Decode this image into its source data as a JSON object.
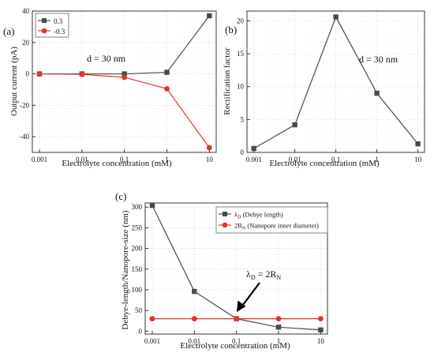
{
  "chart_data": [
    {
      "panel_label": "(a)",
      "type": "line",
      "x": [
        0.001,
        0.01,
        0.1,
        1,
        10
      ],
      "x_tick_labels": [
        "0.001",
        "0.01",
        "0.1",
        "1",
        "10"
      ],
      "x_scale": "log",
      "xlim": [
        0.00068,
        14.5
      ],
      "xlabel": "Electrolyte concentration (mM)",
      "ylabel": "Output current (pA)",
      "ylim": [
        -50,
        40
      ],
      "y_ticks": [
        -40,
        -20,
        0,
        20,
        40
      ],
      "y_tick_labels": [
        "-40",
        "-20",
        "0",
        "20",
        "40"
      ],
      "grid": true,
      "legend_position": "top-left",
      "annotation": "d = 30 nm",
      "series": [
        {
          "name": "0.3",
          "color": "#4a4a4a",
          "marker": "square",
          "values": [
            0,
            0,
            0,
            1,
            37
          ]
        },
        {
          "name": "-0.3",
          "color": "#e0342e",
          "marker": "circle",
          "values": [
            0,
            -0.3,
            -2.2,
            -9.5,
            -47
          ]
        }
      ]
    },
    {
      "panel_label": "(b)",
      "type": "line",
      "x": [
        0.001,
        0.01,
        0.1,
        1,
        10
      ],
      "x_tick_labels": [
        "0.001",
        "0.01",
        "0.1",
        "1",
        "10"
      ],
      "x_scale": "log",
      "xlim": [
        0.00068,
        14.5
      ],
      "xlabel": "Electrolyte concentration (mM)",
      "ylabel": "Rectification factor",
      "ylim": [
        0,
        21.5
      ],
      "y_ticks": [
        0,
        5,
        10,
        15,
        20
      ],
      "y_tick_labels": [
        "0",
        "5",
        "10",
        "15",
        "20"
      ],
      "grid": true,
      "annotation": "d = 30 nm",
      "series": [
        {
          "color": "#4a4a4a",
          "marker": "square",
          "values": [
            0.6,
            4.2,
            20.6,
            9.0,
            1.3
          ]
        }
      ]
    },
    {
      "panel_label": "(c)",
      "type": "line",
      "x": [
        0.001,
        0.01,
        0.1,
        1,
        10
      ],
      "x_tick_labels": [
        "0.001",
        "0.01",
        "0.1",
        "1",
        "10"
      ],
      "x_scale": "log",
      "xlim": [
        0.00068,
        14.5
      ],
      "xlabel": "Electrolyte concentration (mM)",
      "ylabel": "Debye-length/Nanopore-size (nm)",
      "ylim": [
        -7,
        310
      ],
      "y_ticks": [
        0,
        50,
        100,
        150,
        200,
        250,
        300
      ],
      "y_tick_labels": [
        "0",
        "50",
        "100",
        "150",
        "200",
        "250",
        "300"
      ],
      "grid": true,
      "legend_position": "top-right",
      "series": [
        {
          "name_main": "λ",
          "name_sub": "D",
          "name_rest": " (Debye length)",
          "color": "#4a4a4a",
          "marker": "square",
          "values": [
            304,
            96,
            30,
            9.6,
            3
          ]
        },
        {
          "name_main": "2R",
          "name_sub": "N",
          "name_rest": " (Nanopore inner diameter)",
          "color": "#e0342e",
          "marker": "circle",
          "values": [
            30,
            30,
            30,
            30,
            30
          ]
        }
      ],
      "annotation": {
        "lambda": "λ",
        "d_sub": "D",
        "equals": " = 2R",
        "n_sub": "N"
      }
    }
  ]
}
